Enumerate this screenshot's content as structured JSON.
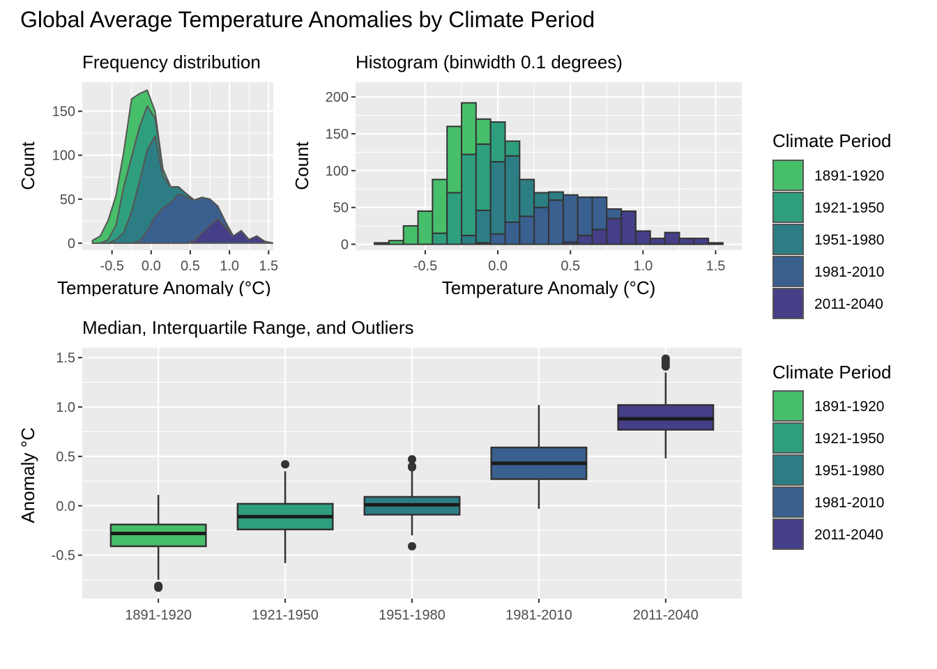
{
  "title": "Global Average Temperature Anomalies by Climate Period",
  "colors": {
    "1891-1920": "#47be6a",
    "1921-1950": "#2f9e7f",
    "1951-1980": "#2c7e84",
    "1981-2010": "#39608f",
    "2011-2040": "#453f88"
  },
  "legends": [
    {
      "title": "Climate Period",
      "items": [
        "1891-1920",
        "1921-1950",
        "1951-1980",
        "1981-2010",
        "2011-2040"
      ]
    },
    {
      "title": "Climate Period",
      "items": [
        "1891-1920",
        "1921-1950",
        "1951-1980",
        "1981-2010",
        "2011-2040"
      ]
    }
  ],
  "chart_data": [
    {
      "type": "area",
      "title": "Frequency distribution",
      "xlabel": "Temperature Anomaly (°C)",
      "ylabel": "Count",
      "xlim": [
        -0.88,
        1.56
      ],
      "ylim": [
        -8,
        183
      ],
      "x_ticks": [
        -0.5,
        0.0,
        0.5,
        1.0,
        1.5
      ],
      "x_tick_labels": [
        "-0.5",
        "0.0",
        "0.5",
        "1.0",
        "1.5"
      ],
      "y_ticks": [
        0,
        50,
        100,
        150
      ],
      "y_tick_labels": [
        "0",
        "50",
        "100",
        "150"
      ],
      "grid": true,
      "stacked": true,
      "x": [
        -0.75,
        -0.65,
        -0.55,
        -0.45,
        -0.35,
        -0.25,
        -0.15,
        -0.05,
        0.05,
        0.15,
        0.25,
        0.35,
        0.45,
        0.55,
        0.65,
        0.75,
        0.85,
        0.95,
        1.05,
        1.15,
        1.25,
        1.35,
        1.45,
        1.55
      ],
      "series": [
        {
          "name": "2011-2040",
          "values": [
            0,
            0,
            0,
            0,
            0,
            0,
            0,
            0,
            0,
            0,
            0,
            0,
            0,
            3,
            12,
            20,
            28,
            18,
            8,
            14,
            4,
            8,
            2,
            0
          ]
        },
        {
          "name": "1981-2010",
          "values": [
            0,
            0,
            0,
            0,
            0,
            0,
            2,
            14,
            30,
            40,
            46,
            56,
            52,
            46,
            40,
            30,
            14,
            6,
            0,
            0,
            0,
            0,
            0,
            0
          ]
        },
        {
          "name": "1951-1980",
          "values": [
            0,
            0,
            0,
            4,
            12,
            36,
            68,
            92,
            92,
            36,
            18,
            8,
            4,
            0,
            0,
            0,
            0,
            0,
            0,
            0,
            0,
            0,
            0,
            0
          ]
        },
        {
          "name": "1921-1950",
          "values": [
            0,
            0,
            4,
            16,
            52,
            62,
            62,
            50,
            20,
            8,
            0,
            0,
            0,
            0,
            0,
            0,
            0,
            0,
            0,
            0,
            0,
            0,
            0,
            0
          ]
        },
        {
          "name": "1891-1920",
          "values": [
            3,
            8,
            22,
            34,
            40,
            66,
            38,
            18,
            8,
            0,
            0,
            0,
            0,
            0,
            0,
            0,
            0,
            0,
            0,
            0,
            0,
            0,
            0,
            0
          ]
        }
      ]
    },
    {
      "type": "bar",
      "title": "Histogram (binwidth 0.1 degrees)",
      "xlabel": "Temperature Anomaly (°C)",
      "ylabel": "Count",
      "binwidth": 0.1,
      "xlim": [
        -0.98,
        1.68
      ],
      "ylim": [
        -8,
        220
      ],
      "x_ticks": [
        -0.5,
        0.0,
        0.5,
        1.0,
        1.5
      ],
      "x_tick_labels": [
        "-0.5",
        "0.0",
        "0.5",
        "1.0",
        "1.5"
      ],
      "y_ticks": [
        0,
        50,
        100,
        150,
        200
      ],
      "y_tick_labels": [
        "0",
        "50",
        "100",
        "150",
        "200"
      ],
      "grid": true,
      "stacked": true,
      "x": [
        -0.8,
        -0.7,
        -0.6,
        -0.5,
        -0.4,
        -0.3,
        -0.2,
        -0.1,
        0.0,
        0.1,
        0.2,
        0.3,
        0.4,
        0.5,
        0.6,
        0.7,
        0.8,
        0.9,
        1.0,
        1.1,
        1.2,
        1.3,
        1.4,
        1.5
      ],
      "series": [
        {
          "name": "2011-2040",
          "values": [
            0,
            0,
            0,
            0,
            0,
            0,
            0,
            0,
            0,
            0,
            0,
            0,
            0,
            3,
            12,
            20,
            35,
            45,
            18,
            8,
            16,
            8,
            8,
            2
          ]
        },
        {
          "name": "1981-2010",
          "values": [
            0,
            0,
            0,
            0,
            0,
            0,
            0,
            2,
            14,
            30,
            38,
            50,
            60,
            64,
            52,
            44,
            13,
            0,
            0,
            0,
            0,
            0,
            0,
            0
          ]
        },
        {
          "name": "1951-1980",
          "values": [
            0,
            0,
            0,
            0,
            0,
            0,
            12,
            44,
            98,
            90,
            50,
            20,
            11,
            0,
            0,
            0,
            0,
            0,
            0,
            0,
            0,
            0,
            0,
            0
          ]
        },
        {
          "name": "1921-1950",
          "values": [
            0,
            0,
            0,
            0,
            15,
            70,
            110,
            90,
            54,
            20,
            0,
            0,
            0,
            0,
            0,
            0,
            0,
            0,
            0,
            0,
            0,
            0,
            0,
            0
          ]
        },
        {
          "name": "1891-1920",
          "values": [
            2,
            5,
            25,
            45,
            73,
            90,
            70,
            34,
            0,
            0,
            0,
            0,
            0,
            0,
            0,
            0,
            0,
            0,
            0,
            0,
            0,
            0,
            0,
            0
          ]
        }
      ]
    },
    {
      "type": "box",
      "title": "Median, Interquartile Range, and Outliers",
      "xlabel": "",
      "ylabel": "Anomaly °C",
      "ylim": [
        -0.94,
        1.6
      ],
      "y_ticks": [
        -0.5,
        0.0,
        0.5,
        1.0,
        1.5
      ],
      "y_tick_labels": [
        "-0.5",
        "0.0",
        "0.5",
        "1.0",
        "1.5"
      ],
      "grid": true,
      "categories": [
        "1891-1920",
        "1921-1950",
        "1951-1980",
        "1981-2010",
        "2011-2040"
      ],
      "boxes": [
        {
          "name": "1891-1920",
          "min": -0.75,
          "q1": -0.41,
          "median": -0.28,
          "q3": -0.19,
          "max": 0.11,
          "outliers": [
            -0.81,
            -0.82,
            -0.83
          ]
        },
        {
          "name": "1921-1950",
          "min": -0.58,
          "q1": -0.24,
          "median": -0.11,
          "q3": 0.02,
          "max": 0.35,
          "outliers": [
            0.42
          ]
        },
        {
          "name": "1951-1980",
          "min": -0.3,
          "q1": -0.09,
          "median": 0.01,
          "q3": 0.09,
          "max": 0.35,
          "outliers": [
            0.47,
            0.39,
            0.4,
            -0.41
          ]
        },
        {
          "name": "1981-2010",
          "min": -0.03,
          "q1": 0.27,
          "median": 0.43,
          "q3": 0.59,
          "max": 1.02,
          "outliers": []
        },
        {
          "name": "2011-2040",
          "min": 0.48,
          "q1": 0.77,
          "median": 0.88,
          "q3": 1.02,
          "max": 1.35,
          "outliers": [
            1.49,
            1.46,
            1.43,
            1.41
          ]
        }
      ]
    }
  ]
}
